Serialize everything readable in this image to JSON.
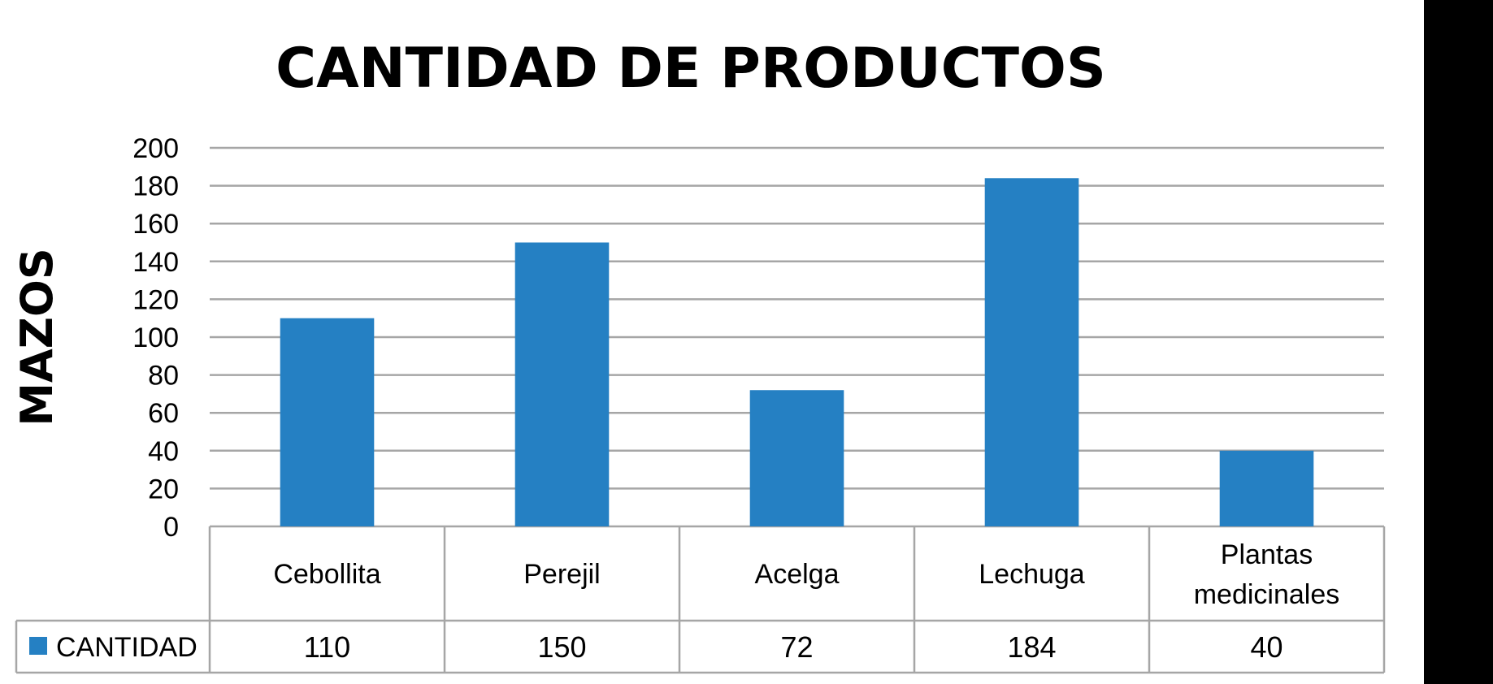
{
  "chart_data": {
    "type": "bar",
    "title": "CANTIDAD DE PRODUCTOS",
    "ylabel": "MAZOS",
    "xlabel": "",
    "categories": [
      "Cebollita",
      "Perejil",
      "Acelga",
      "Lechuga",
      "Plantas medicinales"
    ],
    "series": [
      {
        "name": "CANTIDAD",
        "color": "#2580c3",
        "values": [
          110,
          150,
          72,
          184,
          40
        ]
      }
    ],
    "ylim": [
      0,
      200
    ],
    "yticks": [
      0,
      20,
      40,
      60,
      80,
      100,
      120,
      140,
      160,
      180,
      200
    ],
    "grid": true,
    "legend": "data-table"
  }
}
